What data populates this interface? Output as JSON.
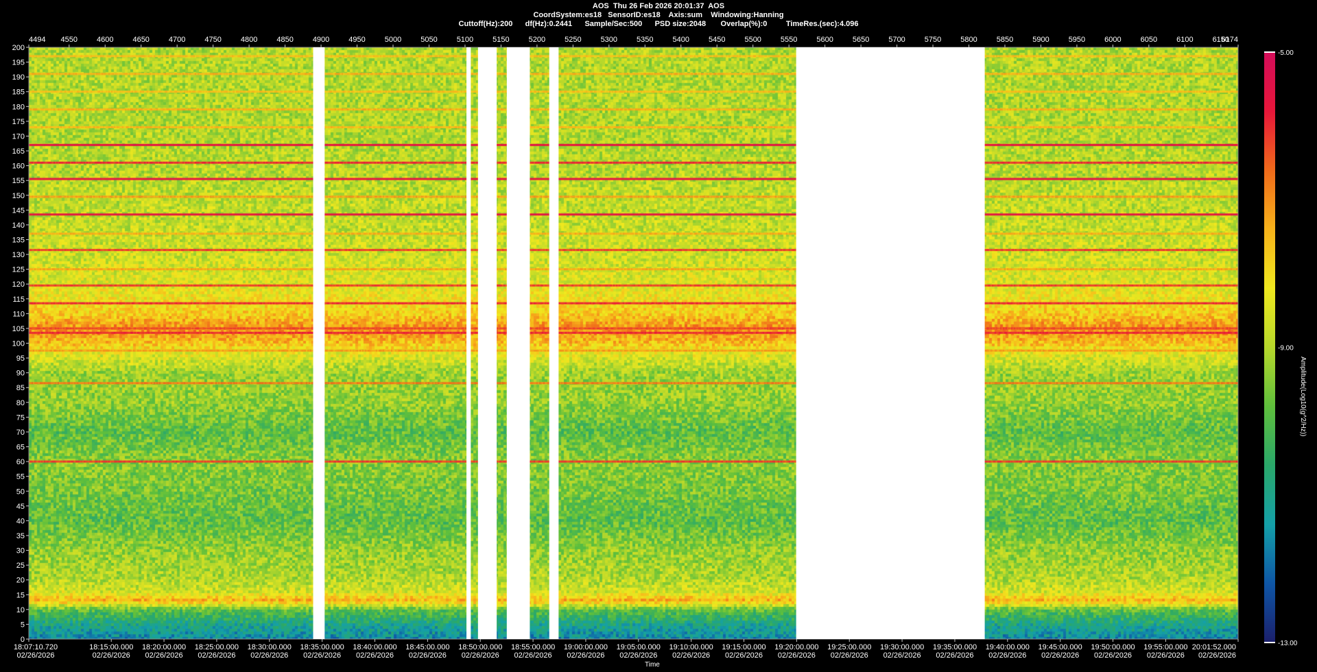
{
  "header": {
    "line1": "AOS  Thu 26 Feb 2026 20:01:37  AOS",
    "line2": "CoordSystem:es18   SensorID:es18    Axis:sum    Windowing:Hanning",
    "line3": "Cuttoff(Hz):200      df(Hz):0.2441      Sample/Sec:500      PSD size:2048       Overlap(%):0         TimeRes.(sec):4.096"
  },
  "chart_data": {
    "type": "heatmap",
    "title": "AOS  Thu 26 Feb 2026 20:01:37  AOS",
    "xlabel": "Time",
    "ylabel": "",
    "colorbar_label": "Amplitude(Log10(g^2/Hz))",
    "colorbar_ticks": [
      "-5.00",
      "-9.00",
      "-13.00"
    ],
    "colorbar_range": [
      -13.0,
      -5.0
    ],
    "ylim": [
      0,
      200
    ],
    "y_ticks": [
      0,
      5,
      10,
      15,
      20,
      25,
      30,
      35,
      40,
      45,
      50,
      55,
      60,
      65,
      70,
      75,
      80,
      85,
      90,
      95,
      100,
      105,
      110,
      115,
      120,
      125,
      130,
      135,
      140,
      145,
      150,
      155,
      160,
      165,
      170,
      175,
      180,
      185,
      190,
      195,
      200
    ],
    "top_axis_labels": [
      "4494",
      "4550",
      "4600",
      "4650",
      "4700",
      "4750",
      "4800",
      "4850",
      "4900",
      "4950",
      "5000",
      "5050",
      "5100",
      "5150",
      "5200",
      "5250",
      "5300",
      "5350",
      "5400",
      "5450",
      "5500",
      "5550",
      "5600",
      "5650",
      "5700",
      "5750",
      "5800",
      "5850",
      "5900",
      "5950",
      "6000",
      "6050",
      "6100",
      "6150",
      "6174"
    ],
    "top_axis_range": [
      4494,
      6174
    ],
    "time_labels": [
      {
        "t": "18:07:10.720",
        "d": "02/26/2026",
        "m": 0
      },
      {
        "t": "18:15:00.000",
        "d": "02/26/2026",
        "m": 7.82
      },
      {
        "t": "18:20:00.000",
        "d": "02/26/2026",
        "m": 12.82
      },
      {
        "t": "18:25:00.000",
        "d": "02/26/2026",
        "m": 17.82
      },
      {
        "t": "18:30:00.000",
        "d": "02/26/2026",
        "m": 22.82
      },
      {
        "t": "18:35:00.000",
        "d": "02/26/2026",
        "m": 27.82
      },
      {
        "t": "18:40:00.000",
        "d": "02/26/2026",
        "m": 32.82
      },
      {
        "t": "18:45:00.000",
        "d": "02/26/2026",
        "m": 37.82
      },
      {
        "t": "18:50:00.000",
        "d": "02/26/2026",
        "m": 42.82
      },
      {
        "t": "18:55:00.000",
        "d": "02/26/2026",
        "m": 47.82
      },
      {
        "t": "19:00:00.000",
        "d": "02/26/2026",
        "m": 52.82
      },
      {
        "t": "19:05:00.000",
        "d": "02/26/2026",
        "m": 57.82
      },
      {
        "t": "19:10:00.000",
        "d": "02/26/2026",
        "m": 62.82
      },
      {
        "t": "19:15:00.000",
        "d": "02/26/2026",
        "m": 67.82
      },
      {
        "t": "19:20:00.000",
        "d": "02/26/2026",
        "m": 72.82
      },
      {
        "t": "19:25:00.000",
        "d": "02/26/2026",
        "m": 77.82
      },
      {
        "t": "19:30:00.000",
        "d": "02/26/2026",
        "m": 82.82
      },
      {
        "t": "19:35:00.000",
        "d": "02/26/2026",
        "m": 87.82
      },
      {
        "t": "19:40:00.000",
        "d": "02/26/2026",
        "m": 92.82
      },
      {
        "t": "19:45:00.000",
        "d": "02/26/2026",
        "m": 97.82
      },
      {
        "t": "19:50:00.000",
        "d": "02/26/2026",
        "m": 102.82
      },
      {
        "t": "19:55:00.000",
        "d": "02/26/2026",
        "m": 107.82
      },
      {
        "t": "20:01:52.000",
        "d": "02/26/2026",
        "m": 114.69
      }
    ],
    "time_range_minutes": [
      0,
      114.69
    ],
    "data_gaps": [
      [
        4889,
        4905
      ],
      [
        5102,
        5108
      ],
      [
        5118,
        5144
      ],
      [
        5158,
        5190
      ],
      [
        5217,
        5230
      ],
      [
        5560,
        5822
      ]
    ],
    "narrowband_lines_hz": [
      {
        "f": 60,
        "level": -6.2
      },
      {
        "f": 86.5,
        "level": -6.8
      },
      {
        "f": 97.5,
        "level": -7.2
      },
      {
        "f": 103.5,
        "level": -6.0
      },
      {
        "f": 105,
        "level": -6.3
      },
      {
        "f": 113.5,
        "level": -6.0
      },
      {
        "f": 119.5,
        "level": -6.2
      },
      {
        "f": 125,
        "level": -7.3
      },
      {
        "f": 131.5,
        "level": -6.2
      },
      {
        "f": 137,
        "level": -7.4
      },
      {
        "f": 143.5,
        "level": -5.6
      },
      {
        "f": 149.5,
        "level": -7.2
      },
      {
        "f": 155.5,
        "level": -5.6
      },
      {
        "f": 161,
        "level": -6.0
      },
      {
        "f": 167,
        "level": -5.6
      },
      {
        "f": 173,
        "level": -7.5
      },
      {
        "f": 179,
        "level": -7.4
      },
      {
        "f": 185,
        "level": -7.6
      },
      {
        "f": 191,
        "level": -7.4
      },
      {
        "f": 197,
        "level": -7.6
      }
    ],
    "broadband_profile": [
      {
        "f": 0,
        "level": -11.6
      },
      {
        "f": 5,
        "level": -11.0
      },
      {
        "f": 10,
        "level": -9.8
      },
      {
        "f": 13,
        "level": -7.4
      },
      {
        "f": 16,
        "level": -8.6
      },
      {
        "f": 20,
        "level": -9.0
      },
      {
        "f": 30,
        "level": -9.3
      },
      {
        "f": 40,
        "level": -9.9
      },
      {
        "f": 50,
        "level": -9.6
      },
      {
        "f": 60,
        "level": -9.4
      },
      {
        "f": 70,
        "level": -9.9
      },
      {
        "f": 80,
        "level": -9.3
      },
      {
        "f": 90,
        "level": -9.2
      },
      {
        "f": 97,
        "level": -8.3
      },
      {
        "f": 100,
        "level": -7.6
      },
      {
        "f": 105,
        "level": -7.0
      },
      {
        "f": 110,
        "level": -7.8
      },
      {
        "f": 120,
        "level": -8.5
      },
      {
        "f": 140,
        "level": -8.8
      },
      {
        "f": 170,
        "level": -9.0
      },
      {
        "f": 200,
        "level": -9.0
      }
    ],
    "colormap": [
      "#1b1f6b",
      "#0e56a6",
      "#14a0a8",
      "#2aa86a",
      "#5fbf3c",
      "#b7d82b",
      "#f0e81e",
      "#f7b21a",
      "#f06a1a",
      "#e8163a",
      "#d40d5a"
    ]
  }
}
